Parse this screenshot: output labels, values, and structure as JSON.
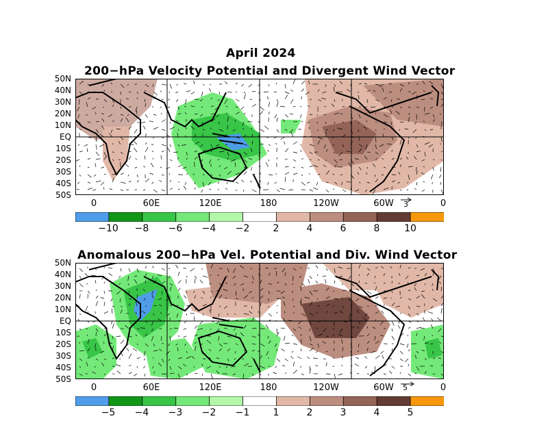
{
  "figure_title": "April 2024",
  "panels": [
    {
      "title": "200−hPa Velocity Potential and Divergent Wind Vector",
      "lat_labels": [
        "50N",
        "40N",
        "30N",
        "20N",
        "10N",
        "EQ",
        "10S",
        "20S",
        "30S",
        "40S",
        "50S"
      ],
      "lon_labels": [
        "0",
        "60E",
        "120E",
        "180",
        "120W",
        "60W",
        "0"
      ],
      "vector_ref": "3",
      "colorbar_labels": [
        "−10",
        "−8",
        "−6",
        "−4",
        "−2",
        "2",
        "4",
        "6",
        "8",
        "10"
      ]
    },
    {
      "title": "Anomalous 200−hPa Vel. Potential and Div. Wind Vector",
      "lat_labels": [
        "50N",
        "40N",
        "30N",
        "20N",
        "10N",
        "EQ",
        "10S",
        "20S",
        "30S",
        "40S",
        "50S"
      ],
      "lon_labels": [
        "0",
        "60E",
        "120E",
        "180",
        "120W",
        "60W",
        "0"
      ],
      "vector_ref": "5",
      "colorbar_labels": [
        "−5",
        "−4",
        "−3",
        "−2",
        "−1",
        "1",
        "2",
        "3",
        "4",
        "5"
      ]
    }
  ],
  "colorbar_colors": [
    "#4f9de8",
    "#129618",
    "#38c548",
    "#74e979",
    "#b4f7ab",
    "#ffffff",
    "#e1b8a8",
    "#bc8e80",
    "#946458",
    "#633c34",
    "#f7980c"
  ],
  "map_colors": {
    "land_outline": "#000000",
    "grid": "#000000"
  },
  "icons": [
    "reference-vector-arrow-icon"
  ]
}
